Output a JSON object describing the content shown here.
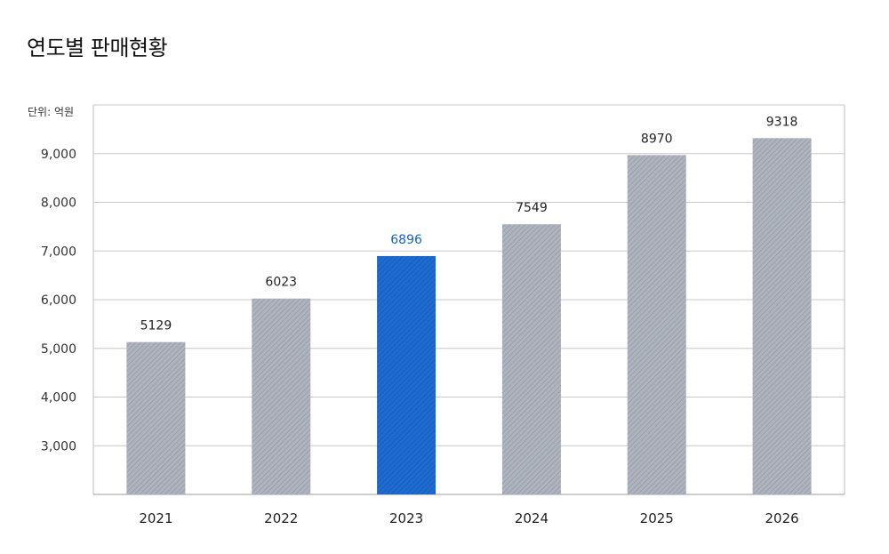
{
  "title": "연도별 판매현황",
  "unit_label": "단위: 억원",
  "colors": {
    "bar": "#a7acb6",
    "highlight": "#1a64c4",
    "grid": "#c8c8c8",
    "highlight_label": "#1565c0"
  },
  "chart_data": {
    "type": "bar",
    "categories": [
      "2021",
      "2022",
      "2023",
      "2024",
      "2025",
      "2026"
    ],
    "values": [
      5129,
      6023,
      6896,
      7549,
      8970,
      9318
    ],
    "data_labels": [
      "5129",
      "6023",
      "6896",
      "7549",
      "8970",
      "9318"
    ],
    "highlight_category": "2023",
    "y_ticks": [
      3000,
      4000,
      5000,
      6000,
      7000,
      8000,
      9000
    ],
    "y_tick_labels": [
      "3,000",
      "4,000",
      "5,000",
      "6,000",
      "7,000",
      "8,000",
      "9,000"
    ],
    "ylim": [
      2000,
      10000
    ],
    "grid": true
  }
}
